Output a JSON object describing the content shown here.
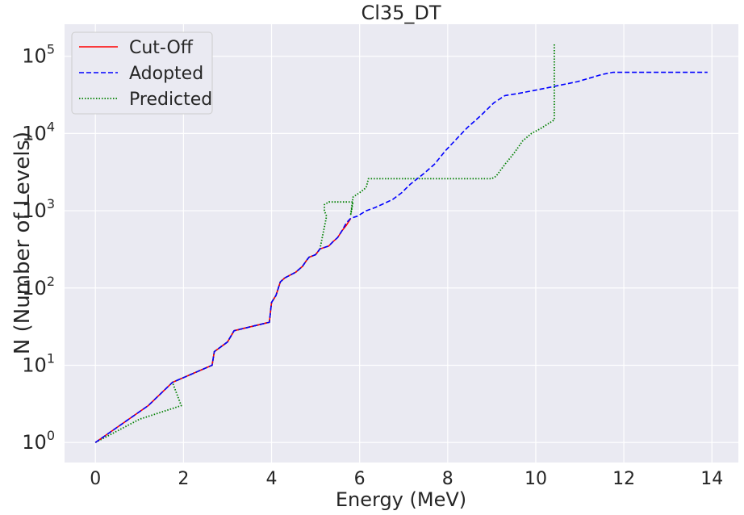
{
  "chart_data": {
    "type": "line",
    "title": "Cl35_DT",
    "xlabel": "Energy (MeV)",
    "ylabel": "N (Number of Levels)",
    "xlim": [
      -0.7,
      14.6
    ],
    "ylim": [
      0.55,
      260000
    ],
    "yscale": "log",
    "grid": true,
    "legend_position": "top-left",
    "colors": {
      "background": "#eaeaf2",
      "grid": "#ffffff",
      "text": "#262626"
    },
    "xticks": [
      0,
      2,
      4,
      6,
      8,
      10,
      12,
      14
    ],
    "xtick_labels": [
      "0",
      "2",
      "4",
      "6",
      "8",
      "10",
      "12",
      "14"
    ],
    "yticks": [
      1,
      10,
      100,
      1000,
      10000,
      100000
    ],
    "ytick_base": [
      "10",
      "10",
      "10",
      "10",
      "10",
      "10"
    ],
    "ytick_exp": [
      "0",
      "1",
      "2",
      "3",
      "4",
      "5"
    ],
    "series": [
      {
        "name": "Cut-Off",
        "color": "#ff0000",
        "style": "solid",
        "x": [
          0,
          1.2,
          1.75,
          2.65,
          2.7,
          3.0,
          3.15,
          3.95,
          4.0,
          4.1,
          4.2,
          4.3,
          4.55,
          4.7,
          4.8,
          4.85,
          5.0,
          5.1,
          5.3,
          5.4,
          5.5,
          5.6,
          5.7,
          5.8
        ],
        "y": [
          1,
          3,
          6,
          10,
          15,
          20,
          28,
          36,
          65,
          80,
          120,
          135,
          160,
          190,
          230,
          250,
          270,
          320,
          350,
          400,
          450,
          550,
          650,
          800
        ]
      },
      {
        "name": "Adopted",
        "color": "#0000ff",
        "style": "dashed",
        "x": [
          0,
          1.2,
          1.75,
          2.65,
          2.7,
          3.0,
          3.15,
          3.95,
          4.0,
          4.1,
          4.2,
          4.3,
          4.55,
          4.7,
          4.8,
          4.85,
          5.0,
          5.1,
          5.3,
          5.4,
          5.5,
          5.6,
          5.7,
          5.8,
          5.95,
          6.15,
          6.35,
          6.5,
          6.75,
          6.95,
          7.15,
          7.45,
          7.7,
          7.95,
          8.2,
          8.45,
          8.75,
          9.05,
          9.3,
          9.6,
          9.95,
          10.35,
          10.95,
          11.5,
          11.75,
          13.9
        ],
        "y": [
          1,
          3,
          6,
          10,
          15,
          20,
          28,
          36,
          65,
          80,
          120,
          135,
          160,
          190,
          230,
          250,
          270,
          320,
          350,
          400,
          450,
          550,
          700,
          800,
          850,
          1000,
          1100,
          1200,
          1400,
          1700,
          2200,
          3000,
          4000,
          6000,
          8500,
          12000,
          17000,
          25000,
          31000,
          33000,
          36000,
          40000,
          47000,
          58000,
          62000,
          62000
        ]
      },
      {
        "name": "Predicted",
        "color": "#008000",
        "style": "dotted",
        "x": [
          0,
          1.75,
          1.95,
          1.0,
          0.0
        ],
        "y": [
          1,
          6,
          3,
          2,
          1
        ]
      }
    ],
    "predicted_path": {
      "x": [
        0,
        1.0,
        1.95,
        1.75,
        2.65,
        2.7,
        3.0,
        3.15,
        3.95,
        4.0,
        4.1,
        4.2,
        4.3,
        4.55,
        4.7,
        4.8,
        4.85,
        5.0,
        5.1,
        5.25,
        5.2,
        5.2,
        5.3,
        5.85,
        5.8,
        5.85,
        6.05,
        6.15,
        6.2,
        9.0,
        9.1,
        9.3,
        9.5,
        9.7,
        9.9,
        10.1,
        10.2,
        10.42,
        10.42
      ],
      "y": [
        1,
        2,
        3,
        6,
        10,
        15,
        20,
        28,
        36,
        65,
        80,
        120,
        135,
        160,
        190,
        230,
        250,
        270,
        320,
        850,
        1000,
        1200,
        1300,
        1300,
        900,
        1500,
        1800,
        2000,
        2600,
        2600,
        2800,
        4000,
        5500,
        8000,
        10000,
        11500,
        12500,
        15000,
        145000
      ]
    }
  }
}
